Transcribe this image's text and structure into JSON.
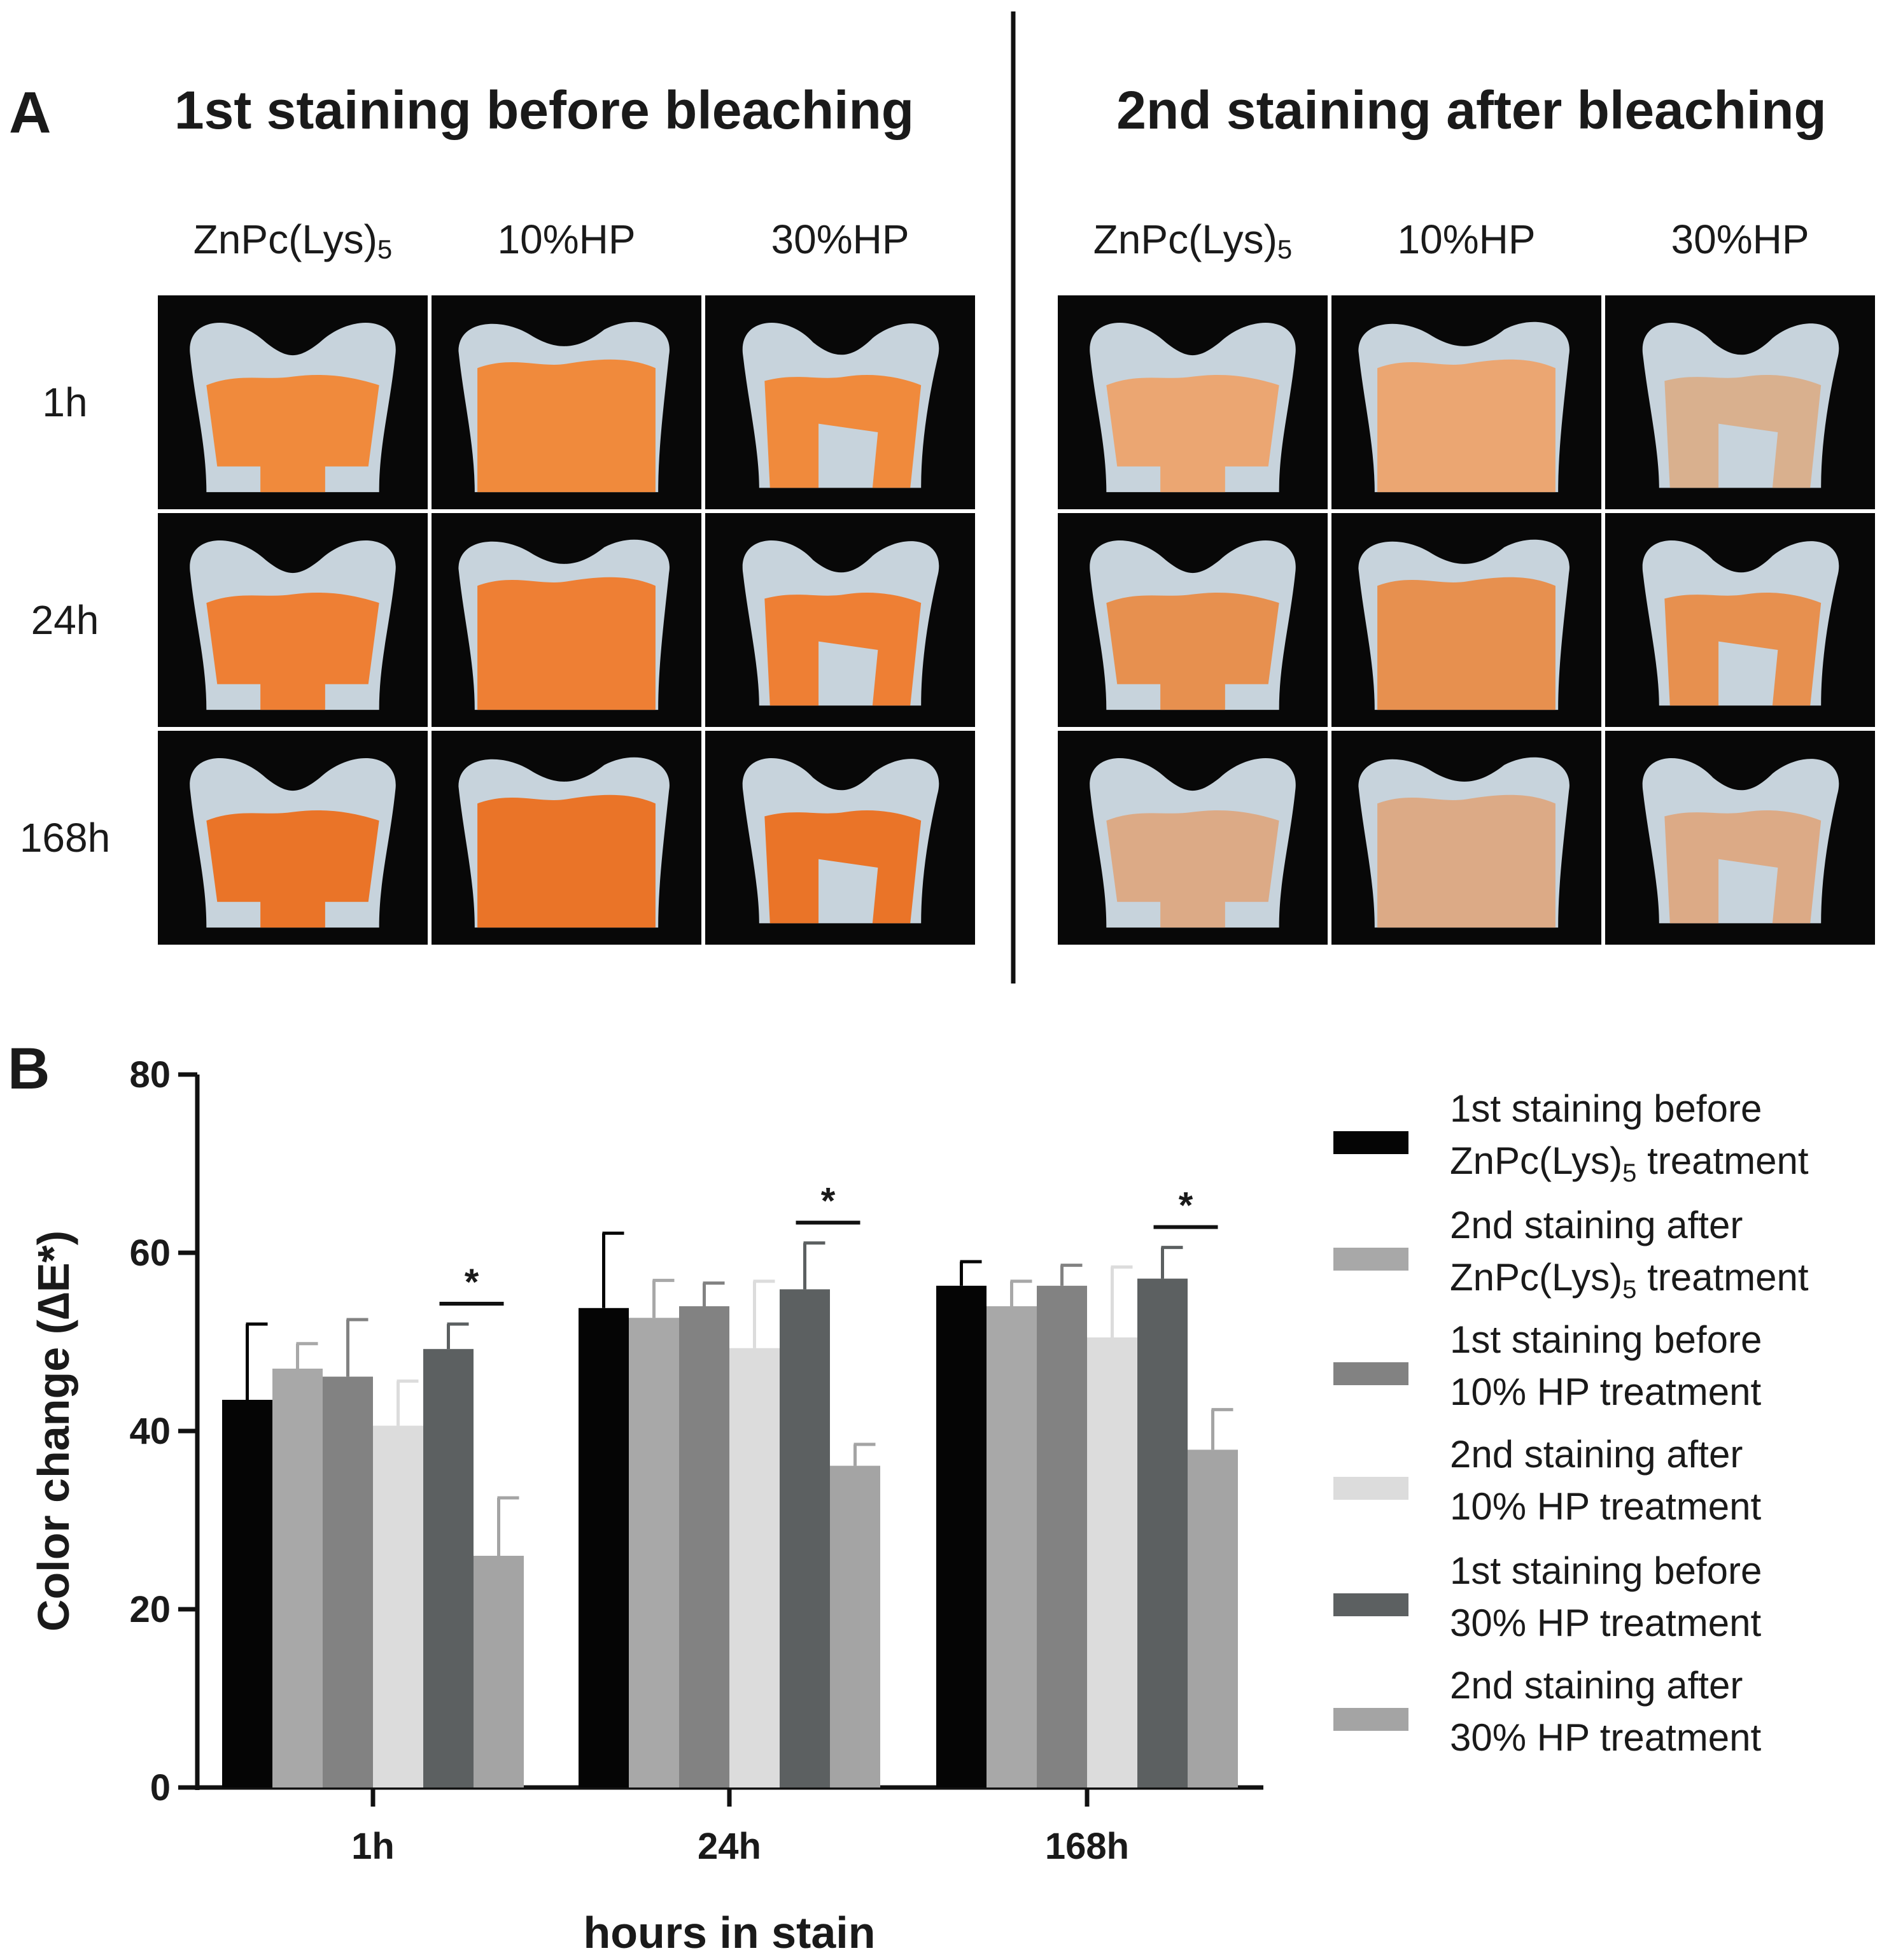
{
  "panel_a": {
    "letter": "A",
    "headings": [
      "1st staining before bleaching",
      "2nd staining after bleaching"
    ],
    "columns": [
      "ZnPc(Lys)",
      "10%HP",
      "30%HP"
    ],
    "column_subscript": "5",
    "rows": [
      "1h",
      "24h",
      "168h"
    ],
    "photo_description_colors": {
      "background": "#080808",
      "enamel_before": "#c7d3dc",
      "dentin_before": [
        "#f08a3c",
        "#ee7f34",
        "#ea7428"
      ],
      "dentin_after": [
        "#eba672",
        "#e7904f",
        "#dcaa86"
      ]
    }
  },
  "panel_b": {
    "letter": "B",
    "significance_marker": "*"
  },
  "chart_data": {
    "type": "bar",
    "title": "",
    "xlabel": "hours in stain",
    "ylabel": "Color change (∆E*)",
    "ylim": [
      0,
      80
    ],
    "yticks": [
      0,
      20,
      40,
      60,
      80
    ],
    "categories": [
      "1h",
      "24h",
      "168h"
    ],
    "series": [
      {
        "name": "1st staining before ZnPc(Lys)5 treatment",
        "legend_lines": [
          "1st staining before",
          "ZnPc(Lys)",
          " treatment"
        ],
        "color": "#050505",
        "values": [
          43.5,
          53.8,
          56.3
        ],
        "errors": [
          8.5,
          8.4,
          2.7
        ]
      },
      {
        "name": "2nd staining after ZnPc(Lys)5 treatment",
        "legend_lines": [
          "2nd staining after",
          "ZnPc(Lys)",
          " treatment"
        ],
        "color": "#a8a8a8",
        "values": [
          47.0,
          52.7,
          54.0
        ],
        "errors": [
          2.8,
          4.2,
          2.8
        ]
      },
      {
        "name": "1st staining before 10% HP treatment",
        "legend_lines": [
          "1st staining before",
          "10% HP treatment"
        ],
        "color": "#828282",
        "values": [
          46.1,
          54.0,
          56.3
        ],
        "errors": [
          6.4,
          2.6,
          2.3
        ]
      },
      {
        "name": "2nd staining after 10% HP treatment",
        "legend_lines": [
          "2nd staining after",
          "10% HP treatment"
        ],
        "color": "#dcdcdc",
        "values": [
          40.6,
          49.3,
          50.5
        ],
        "errors": [
          5.0,
          7.5,
          7.9
        ]
      },
      {
        "name": "1st staining before 30% HP treatment",
        "legend_lines": [
          "1st staining before",
          "30% HP treatment"
        ],
        "color": "#5c6061",
        "values": [
          49.2,
          55.9,
          57.1
        ],
        "errors": [
          2.8,
          5.2,
          3.5
        ]
      },
      {
        "name": "2nd staining after 30% HP treatment",
        "legend_lines": [
          "2nd staining after",
          "30% HP treatment"
        ],
        "color": "#a4a4a4",
        "values": [
          26.0,
          36.1,
          37.9
        ],
        "errors": [
          6.5,
          2.4,
          4.5
        ]
      }
    ],
    "legend_subscript": "5",
    "significance": [
      {
        "category": "1h",
        "between": [
          4,
          5
        ],
        "label": "*"
      },
      {
        "category": "24h",
        "between": [
          4,
          5
        ],
        "label": "*"
      },
      {
        "category": "168h",
        "between": [
          4,
          5
        ],
        "label": "*"
      }
    ],
    "legend_position": "right"
  }
}
